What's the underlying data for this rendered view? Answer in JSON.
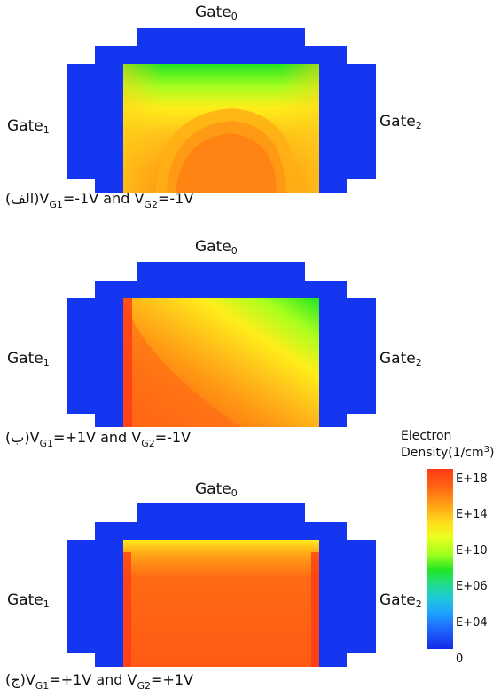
{
  "panels": [
    {
      "gate_top": "Gate",
      "gate_top_sub": "0",
      "gate_left": "Gate",
      "gate_left_sub": "1",
      "gate_right": "Gate",
      "gate_right_sub": "2",
      "caption": {
        "letter": "(الف)",
        "v1": "V",
        "v1_sub": "G1",
        "v1_val": "=-1V",
        "and": " and ",
        "v2": "V",
        "v2_sub": "G2",
        "v2_val": "=-1V"
      }
    },
    {
      "gate_top": "Gate",
      "gate_top_sub": "0",
      "gate_left": "Gate",
      "gate_left_sub": "1",
      "gate_right": "Gate",
      "gate_right_sub": "2",
      "caption": {
        "letter": "(ب)",
        "v1": "V",
        "v1_sub": "G1",
        "v1_val": "=+1V",
        "and": " and ",
        "v2": "V",
        "v2_sub": "G2",
        "v2_val": "=-1V"
      }
    },
    {
      "gate_top": "Gate",
      "gate_top_sub": "0",
      "gate_left": "Gate",
      "gate_left_sub": "1",
      "gate_right": "Gate",
      "gate_right_sub": "2",
      "caption": {
        "letter": "(ج)",
        "v1": "V",
        "v1_sub": "G1",
        "v1_val": "=+1V",
        "and": " and ",
        "v2": "V",
        "v2_sub": "G2",
        "v2_val": "=+1V"
      }
    }
  ],
  "legend": {
    "title_line1": "Electron",
    "title_line2": "Density(1/cm",
    "title_sup": "3",
    "title_close": ")",
    "ticks": [
      "E+18",
      "E+14",
      "E+10",
      "E+06",
      "E+04",
      "0"
    ]
  },
  "colors": {
    "gate": "#1436f0",
    "max_density": "#ff4a1a",
    "high": "#ff8a14",
    "mid": "#ffd21a",
    "low": "#c8ff1e",
    "lower": "#22e622"
  }
}
